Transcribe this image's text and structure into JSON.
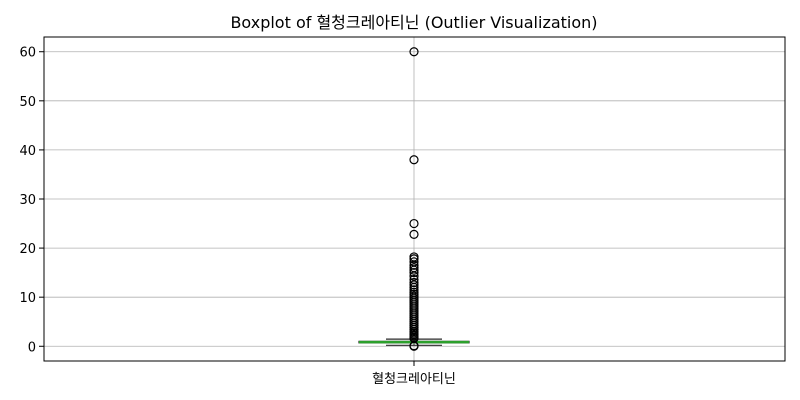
{
  "chart_data": {
    "type": "box",
    "title": "Boxplot of 혈청크레아티닌 (Outlier Visualization)",
    "categories": [
      "혈청크레아티닌"
    ],
    "xlabel": "",
    "ylabel": "",
    "ylim": [
      -3,
      63
    ],
    "yticks": [
      0,
      10,
      20,
      30,
      40,
      50,
      60
    ],
    "grid": true,
    "box": {
      "whisker_low": 0.2,
      "q1": 0.7,
      "median": 0.85,
      "q3": 1.0,
      "whisker_high": 1.45
    },
    "outliers": [
      60,
      38,
      25,
      22.8,
      18.2,
      17.8,
      17.2,
      16.5,
      16.0,
      15.5,
      15.0,
      14.3,
      13.6,
      13.0,
      12.5,
      12.0,
      11.5,
      11.0,
      10.6,
      10.2,
      9.8,
      9.4,
      9.0,
      8.6,
      8.2,
      7.8,
      7.4,
      7.0,
      6.6,
      6.2,
      5.8,
      5.4,
      5.0,
      4.6,
      4.2,
      3.8,
      3.4,
      3.0,
      2.7,
      2.4,
      2.1,
      1.8,
      1.6,
      0.1,
      0.0
    ],
    "colors": {
      "box": "#2a2a2a",
      "median": "#2ca02c",
      "grid": "#b0b0b0",
      "outlier_edge": "#000000"
    }
  }
}
